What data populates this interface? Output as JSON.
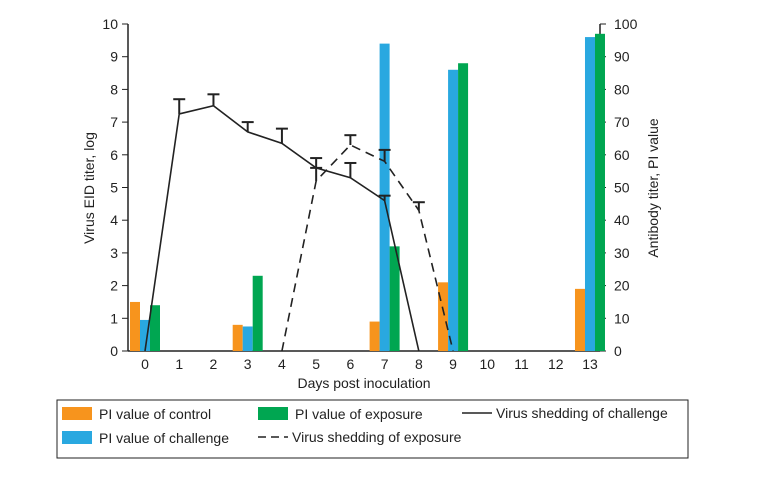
{
  "chart_data": {
    "type": "bar+line",
    "xlabel": "Days post inoculation",
    "ylabel_left": "Virus EID titer, log",
    "ylabel_right": "Antibody titer, PI value",
    "ylim_left": [
      0,
      10
    ],
    "ylim_right": [
      0,
      100
    ],
    "x_ticks": [
      "0",
      "1",
      "2",
      "3",
      "4",
      "5",
      "6",
      "7",
      "8",
      "9",
      "10",
      "11",
      "12",
      "13"
    ],
    "y_left_ticks": [
      "0",
      "1",
      "2",
      "3",
      "4",
      "5",
      "6",
      "7",
      "8",
      "9",
      "10"
    ],
    "y_right_ticks": [
      "0",
      "10",
      "20",
      "30",
      "40",
      "50",
      "60",
      "70",
      "80",
      "90",
      "100"
    ],
    "bar_days": [
      0,
      3,
      7,
      9,
      13
    ],
    "bar_series": [
      {
        "name": "PI value of control",
        "color": "#f7941d",
        "values": [
          15,
          8,
          9,
          21,
          19
        ]
      },
      {
        "name": "PI value of challenge",
        "color": "#29a8e0",
        "values": [
          9.5,
          7.5,
          94,
          86,
          96
        ]
      },
      {
        "name": "PI value of exposure",
        "color": "#00a651",
        "values": [
          14,
          23,
          32,
          88,
          97
        ]
      }
    ],
    "line_series": [
      {
        "name": "Virus shedding of challenge",
        "style": "solid",
        "x": [
          0,
          1,
          2,
          3,
          4,
          5,
          6,
          7,
          8
        ],
        "y": [
          0,
          7.25,
          7.5,
          6.7,
          6.35,
          5.6,
          5.3,
          4.6,
          0
        ],
        "err_upper": [
          null,
          7.7,
          7.85,
          7.0,
          6.8,
          5.9,
          5.75,
          4.75,
          null
        ]
      },
      {
        "name": "Virus shedding of exposure",
        "style": "dashed",
        "x": [
          4,
          5,
          6,
          7,
          8,
          9
        ],
        "y": [
          0,
          5.2,
          6.3,
          5.8,
          4.3,
          0
        ],
        "err_upper": [
          null,
          5.6,
          6.6,
          6.15,
          4.55,
          null
        ]
      }
    ],
    "legend_position": "bottom"
  }
}
